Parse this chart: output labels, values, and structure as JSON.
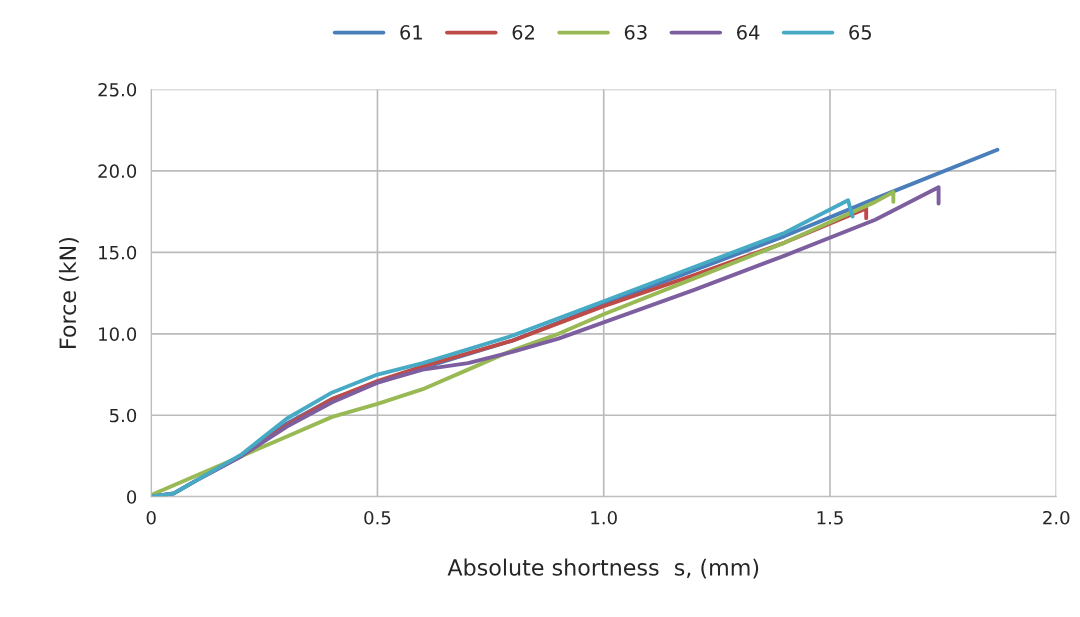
{
  "chart_data": {
    "type": "line",
    "xlabel": "Absolute shortness  s, (mm)",
    "ylabel": "Force (kN)",
    "xlim": [
      0,
      2.0
    ],
    "xticks": [
      0,
      {
        "value": 0.5,
        "label": "0.5"
      },
      {
        "value": 1.0,
        "label": "1.0"
      },
      {
        "value": 1.5,
        "label": "1.5"
      },
      {
        "value": 2.0,
        "label": "2.0"
      }
    ],
    "ylim": [
      0,
      25.0
    ],
    "yticks": [
      0,
      {
        "value": 5,
        "label": "5.0"
      },
      {
        "value": 10,
        "label": "10.0"
      },
      {
        "value": 15,
        "label": "15.0"
      },
      {
        "value": 20,
        "label": "20.0"
      },
      {
        "value": 25,
        "label": "25.0"
      }
    ],
    "grid": true,
    "legend": "top",
    "marker": "none",
    "line_style": "solid",
    "series": [
      {
        "name": "61",
        "color": "#4a7ebb",
        "x": [
          0,
          0.05,
          0.1,
          0.2,
          0.3,
          0.4,
          0.5,
          0.6,
          0.8,
          1.0,
          1.2,
          1.4,
          1.6,
          1.87
        ],
        "values": [
          0,
          0.2,
          1.0,
          2.5,
          4.5,
          6.0,
          7.0,
          7.9,
          9.6,
          11.8,
          13.9,
          16.0,
          18.3,
          21.3
        ]
      },
      {
        "name": "62",
        "color": "#be4b48",
        "x": [
          0.2,
          0.3,
          0.4,
          0.5,
          0.6,
          0.8,
          1.0,
          1.2,
          1.4,
          1.58,
          1.58
        ],
        "values": [
          2.5,
          4.4,
          6.0,
          7.1,
          8.0,
          9.6,
          11.7,
          13.6,
          15.6,
          17.7,
          17.1
        ]
      },
      {
        "name": "63",
        "color": "#98b954",
        "x": [
          0,
          0.1,
          0.2,
          0.3,
          0.4,
          0.5,
          0.6,
          0.7,
          0.8,
          0.9,
          1.0,
          1.2,
          1.4,
          1.6,
          1.64,
          1.64
        ],
        "values": [
          0.1,
          1.3,
          2.5,
          3.7,
          4.9,
          5.7,
          6.6,
          7.8,
          9.0,
          10.0,
          11.2,
          13.4,
          15.6,
          18.1,
          18.7,
          18.1
        ]
      },
      {
        "name": "64",
        "color": "#7d5fa0",
        "x": [
          0,
          0.05,
          0.1,
          0.2,
          0.3,
          0.4,
          0.5,
          0.6,
          0.7,
          0.8,
          0.9,
          1.0,
          1.2,
          1.4,
          1.6,
          1.74,
          1.74
        ],
        "values": [
          0,
          0.2,
          1.0,
          2.5,
          4.3,
          5.8,
          7.0,
          7.8,
          8.2,
          8.9,
          9.7,
          10.7,
          12.7,
          14.8,
          17.0,
          19.0,
          18.0
        ]
      },
      {
        "name": "65",
        "color": "#46aac5",
        "x": [
          0,
          0.05,
          0.1,
          0.2,
          0.3,
          0.4,
          0.5,
          0.6,
          0.8,
          1.0,
          1.2,
          1.4,
          1.54,
          1.55
        ],
        "values": [
          0,
          0.2,
          1.0,
          2.6,
          4.8,
          6.4,
          7.5,
          8.2,
          9.9,
          12.0,
          14.1,
          16.2,
          18.2,
          17.2
        ]
      }
    ]
  }
}
